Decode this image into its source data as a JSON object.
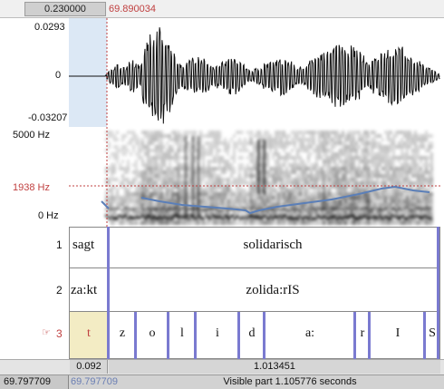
{
  "header": {
    "selection_start": "0.230000",
    "cursor_time": "69.890034"
  },
  "waveform": {
    "max_label": "0.0293",
    "zero_label": "0",
    "min_label": "-0.03207"
  },
  "spectrogram": {
    "top_freq": "5000 Hz",
    "cursor_freq": "1938 Hz",
    "bottom_freq": "0 Hz"
  },
  "tiers": [
    {
      "number": "1",
      "segments": [
        "sagt",
        "solidarisch"
      ]
    },
    {
      "number": "2",
      "segments": [
        "za:kt",
        "zolida:rIS"
      ]
    },
    {
      "number": "3",
      "segments": [
        "t",
        "z",
        "o",
        "l",
        "i",
        "d",
        "a:",
        "r",
        "I",
        "S"
      ]
    }
  ],
  "tier3_pointer_icon": "pointing-hand-icon",
  "durations": {
    "selection_duration": "0.092",
    "rest_duration": "1.013451"
  },
  "footer": {
    "window_start": "69.797709",
    "visible_start": "69.797709",
    "visible_part": "Visible part 1.105776 seconds"
  },
  "colors": {
    "selection_fill": "#dce8f5",
    "interval_selected": "#f3ecc4",
    "boundary": "#7a7ad0",
    "cursor": "#c04040",
    "pitch": "#5b7fb8",
    "panel_bg": "#d6d6d6"
  }
}
